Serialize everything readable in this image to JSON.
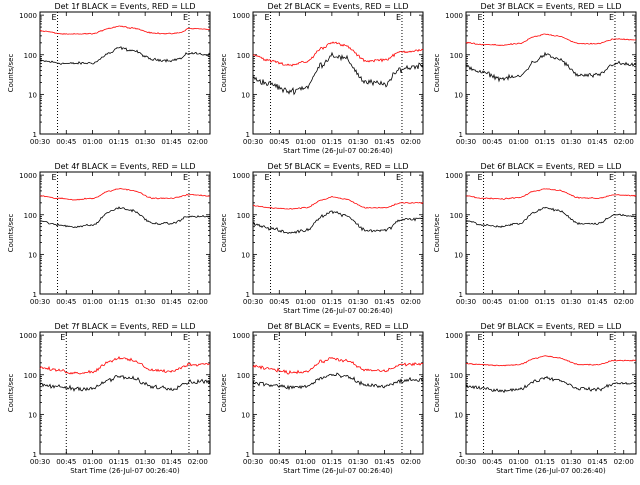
{
  "chart_data": [
    {
      "type": "line",
      "title": "Det 1f BLACK = Events, RED = LLD",
      "ylabel": "Counts/sec",
      "xlabel": "Start Time (26-Jul-07 00:26:40)",
      "show_xlabel": false,
      "x_ticks": [
        "00:30",
        "00:45",
        "01:00",
        "01:15",
        "01:30",
        "01:45",
        "02:00"
      ],
      "y_ticks": [
        "1",
        "10",
        "100",
        "1000"
      ],
      "ylim": [
        1,
        1200
      ],
      "xlim": [
        "00:30",
        "02:07"
      ],
      "scale": "log",
      "markers": [
        "00:40",
        "01:55"
      ],
      "marker_labels": [
        "E",
        "E"
      ],
      "series": [
        {
          "color": "#000000",
          "anchors_x": [
            "00:30",
            "00:45",
            "01:00",
            "01:10",
            "01:15",
            "01:22",
            "01:35",
            "01:45",
            "01:50",
            "01:55",
            "02:07"
          ],
          "anchors_y": [
            70,
            60,
            62,
            110,
            150,
            130,
            75,
            72,
            80,
            110,
            100
          ],
          "noise": 0.05
        },
        {
          "color": "#ff0000",
          "anchors_x": [
            "00:30",
            "00:45",
            "01:00",
            "01:10",
            "01:15",
            "01:22",
            "01:35",
            "01:45",
            "01:50",
            "01:55",
            "02:07"
          ],
          "anchors_y": [
            400,
            330,
            340,
            470,
            530,
            480,
            350,
            340,
            360,
            460,
            440
          ],
          "noise": 0.02
        }
      ]
    },
    {
      "type": "line",
      "title": "Det 2f BLACK = Events, RED = LLD",
      "ylabel": "Counts/sec",
      "xlabel": "Start Time (26-Jul-07 00:26:40)",
      "show_xlabel": true,
      "x_ticks": [
        "00:30",
        "00:45",
        "01:00",
        "01:15",
        "01:30",
        "01:45",
        "02:00"
      ],
      "y_ticks": [
        "1",
        "10",
        "100",
        "1000"
      ],
      "ylim": [
        1,
        1200
      ],
      "xlim": [
        "00:30",
        "02:07"
      ],
      "scale": "log",
      "markers": [
        "00:40",
        "01:55"
      ],
      "marker_labels": [
        "E",
        "E"
      ],
      "series": [
        {
          "color": "#000000",
          "anchors_x": [
            "00:30",
            "00:40",
            "00:50",
            "01:00",
            "01:10",
            "01:15",
            "01:22",
            "01:35",
            "01:45",
            "01:55",
            "02:07"
          ],
          "anchors_y": [
            25,
            18,
            12,
            15,
            60,
            100,
            80,
            20,
            18,
            45,
            55
          ],
          "noise": 0.12
        },
        {
          "color": "#ff0000",
          "anchors_x": [
            "00:30",
            "00:40",
            "00:50",
            "01:00",
            "01:10",
            "01:15",
            "01:22",
            "01:35",
            "01:45",
            "01:55",
            "02:07"
          ],
          "anchors_y": [
            100,
            70,
            55,
            65,
            150,
            210,
            170,
            70,
            75,
            120,
            130
          ],
          "noise": 0.05
        }
      ]
    },
    {
      "type": "line",
      "title": "Det 3f BLACK = Events, RED = LLD",
      "ylabel": "Counts/sec",
      "xlabel": "Start Time (26-Jul-07 00:26:40)",
      "show_xlabel": false,
      "x_ticks": [
        "00:30",
        "00:45",
        "01:00",
        "01:15",
        "01:30",
        "01:45",
        "02:00"
      ],
      "y_ticks": [
        "1",
        "10",
        "100",
        "1000"
      ],
      "ylim": [
        1,
        1200
      ],
      "xlim": [
        "00:30",
        "02:07"
      ],
      "scale": "log",
      "markers": [
        "00:40",
        "01:55"
      ],
      "marker_labels": [
        "E",
        "E"
      ],
      "series": [
        {
          "color": "#000000",
          "anchors_x": [
            "00:30",
            "00:40",
            "00:50",
            "01:00",
            "01:10",
            "01:15",
            "01:22",
            "01:35",
            "01:45",
            "01:55",
            "02:07"
          ],
          "anchors_y": [
            50,
            35,
            25,
            28,
            70,
            100,
            80,
            30,
            30,
            60,
            55
          ],
          "noise": 0.08
        },
        {
          "color": "#ff0000",
          "anchors_x": [
            "00:30",
            "00:40",
            "00:50",
            "01:00",
            "01:10",
            "01:15",
            "01:22",
            "01:35",
            "01:45",
            "01:55",
            "02:07"
          ],
          "anchors_y": [
            200,
            180,
            175,
            190,
            290,
            330,
            300,
            190,
            190,
            250,
            240
          ],
          "noise": 0.02
        }
      ]
    },
    {
      "type": "line",
      "title": "Det 4f BLACK = Events, RED = LLD",
      "ylabel": "Counts/sec",
      "xlabel": "Start Time (26-Jul-07 00:26:40)",
      "show_xlabel": false,
      "x_ticks": [
        "00:30",
        "00:45",
        "01:00",
        "01:15",
        "01:30",
        "01:45",
        "02:00"
      ],
      "y_ticks": [
        "1",
        "10",
        "100",
        "1000"
      ],
      "ylim": [
        1,
        1200
      ],
      "xlim": [
        "00:30",
        "02:07"
      ],
      "scale": "log",
      "markers": [
        "00:40",
        "01:55"
      ],
      "marker_labels": [
        "E",
        "E"
      ],
      "series": [
        {
          "color": "#000000",
          "anchors_x": [
            "00:30",
            "00:40",
            "00:50",
            "01:00",
            "01:10",
            "01:15",
            "01:22",
            "01:35",
            "01:45",
            "01:55",
            "02:07"
          ],
          "anchors_y": [
            70,
            55,
            50,
            55,
            120,
            150,
            130,
            60,
            60,
            90,
            90
          ],
          "noise": 0.04
        },
        {
          "color": "#ff0000",
          "anchors_x": [
            "00:30",
            "00:40",
            "00:50",
            "01:00",
            "01:10",
            "01:15",
            "01:22",
            "01:35",
            "01:45",
            "01:55",
            "02:07"
          ],
          "anchors_y": [
            300,
            260,
            240,
            260,
            400,
            460,
            420,
            260,
            260,
            320,
            300
          ],
          "noise": 0.02
        }
      ]
    },
    {
      "type": "line",
      "title": "Det 5f BLACK = Events, RED = LLD",
      "ylabel": "Counts/sec",
      "xlabel": "Start Time (26-Jul-07 00:26:40)",
      "show_xlabel": true,
      "x_ticks": [
        "00:30",
        "00:45",
        "01:00",
        "01:15",
        "01:30",
        "01:45",
        "02:00"
      ],
      "y_ticks": [
        "1",
        "10",
        "100",
        "1000"
      ],
      "ylim": [
        1,
        1200
      ],
      "xlim": [
        "00:30",
        "02:07"
      ],
      "scale": "log",
      "markers": [
        "00:40",
        "01:55"
      ],
      "marker_labels": [
        "E",
        "E"
      ],
      "series": [
        {
          "color": "#000000",
          "anchors_x": [
            "00:30",
            "00:40",
            "00:50",
            "01:00",
            "01:10",
            "01:15",
            "01:22",
            "01:35",
            "01:45",
            "01:55",
            "02:07"
          ],
          "anchors_y": [
            60,
            45,
            35,
            40,
            95,
            120,
            100,
            40,
            40,
            75,
            80
          ],
          "noise": 0.06
        },
        {
          "color": "#ff0000",
          "anchors_x": [
            "00:30",
            "00:40",
            "00:50",
            "01:00",
            "01:10",
            "01:15",
            "01:22",
            "01:35",
            "01:45",
            "01:55",
            "02:07"
          ],
          "anchors_y": [
            170,
            150,
            140,
            150,
            240,
            280,
            250,
            150,
            150,
            200,
            200
          ],
          "noise": 0.02
        }
      ]
    },
    {
      "type": "line",
      "title": "Det 6f BLACK = Events, RED = LLD",
      "ylabel": "Counts/sec",
      "xlabel": "Start Time (26-Jul-07 00:26:40)",
      "show_xlabel": false,
      "x_ticks": [
        "00:30",
        "00:45",
        "01:00",
        "01:15",
        "01:30",
        "01:45",
        "02:00"
      ],
      "y_ticks": [
        "1",
        "10",
        "100",
        "1000"
      ],
      "ylim": [
        1,
        1200
      ],
      "xlim": [
        "00:30",
        "02:07"
      ],
      "scale": "log",
      "markers": [
        "00:40",
        "01:55"
      ],
      "marker_labels": [
        "E",
        "E"
      ],
      "series": [
        {
          "color": "#000000",
          "anchors_x": [
            "00:30",
            "00:40",
            "00:50",
            "01:00",
            "01:10",
            "01:15",
            "01:22",
            "01:35",
            "01:45",
            "01:55",
            "02:07"
          ],
          "anchors_y": [
            70,
            55,
            50,
            60,
            120,
            150,
            130,
            60,
            60,
            100,
            90
          ],
          "noise": 0.04
        },
        {
          "color": "#ff0000",
          "anchors_x": [
            "00:30",
            "00:40",
            "00:50",
            "01:00",
            "01:10",
            "01:15",
            "01:22",
            "01:35",
            "01:45",
            "01:55",
            "02:07"
          ],
          "anchors_y": [
            300,
            260,
            250,
            270,
            400,
            450,
            420,
            270,
            260,
            320,
            300
          ],
          "noise": 0.02
        }
      ]
    },
    {
      "type": "line",
      "title": "Det 7f BLACK = Events, RED = LLD",
      "ylabel": "Counts/sec",
      "xlabel": "Start Time (26-Jul-07 00:26:40)",
      "show_xlabel": true,
      "x_ticks": [
        "00:30",
        "00:45",
        "01:00",
        "01:15",
        "01:30",
        "01:45",
        "02:00"
      ],
      "y_ticks": [
        "1",
        "10",
        "100",
        "1000"
      ],
      "ylim": [
        1,
        1200
      ],
      "xlim": [
        "00:30",
        "02:07"
      ],
      "scale": "log",
      "markers": [
        "00:45",
        "01:55"
      ],
      "marker_labels": [
        "E",
        "E"
      ],
      "series": [
        {
          "color": "#000000",
          "anchors_x": [
            "00:30",
            "00:40",
            "00:50",
            "01:00",
            "01:10",
            "01:15",
            "01:22",
            "01:35",
            "01:45",
            "01:55",
            "02:07"
          ],
          "anchors_y": [
            55,
            50,
            45,
            45,
            75,
            90,
            80,
            50,
            45,
            65,
            70
          ],
          "noise": 0.08
        },
        {
          "color": "#ff0000",
          "anchors_x": [
            "00:30",
            "00:40",
            "00:50",
            "01:00",
            "01:10",
            "01:15",
            "01:22",
            "01:35",
            "01:45",
            "01:55",
            "02:07"
          ],
          "anchors_y": [
            150,
            130,
            110,
            120,
            220,
            270,
            230,
            130,
            120,
            180,
            190
          ],
          "noise": 0.06
        }
      ]
    },
    {
      "type": "line",
      "title": "Det 8f BLACK = Events, RED = LLD",
      "ylabel": "Counts/sec",
      "xlabel": "Start Time (26-Jul-07 00:26:40)",
      "show_xlabel": true,
      "x_ticks": [
        "00:30",
        "00:45",
        "01:00",
        "01:15",
        "01:30",
        "01:45",
        "02:00"
      ],
      "y_ticks": [
        "1",
        "10",
        "100",
        "1000"
      ],
      "ylim": [
        1,
        1200
      ],
      "xlim": [
        "00:30",
        "02:07"
      ],
      "scale": "log",
      "markers": [
        "00:45",
        "01:55"
      ],
      "marker_labels": [
        "E",
        "E"
      ],
      "series": [
        {
          "color": "#000000",
          "anchors_x": [
            "00:30",
            "00:40",
            "00:50",
            "01:00",
            "01:10",
            "01:15",
            "01:22",
            "01:35",
            "01:45",
            "01:55",
            "02:07"
          ],
          "anchors_y": [
            65,
            55,
            48,
            50,
            85,
            100,
            90,
            55,
            50,
            70,
            75
          ],
          "noise": 0.08
        },
        {
          "color": "#ff0000",
          "anchors_x": [
            "00:30",
            "00:40",
            "00:50",
            "01:00",
            "01:10",
            "01:15",
            "01:22",
            "01:35",
            "01:45",
            "01:55",
            "02:07"
          ],
          "anchors_y": [
            160,
            140,
            115,
            120,
            220,
            260,
            230,
            130,
            125,
            180,
            190
          ],
          "noise": 0.06
        }
      ]
    },
    {
      "type": "line",
      "title": "Det 9f BLACK = Events, RED = LLD",
      "ylabel": "Counts/sec",
      "xlabel": "Start Time (26-Jul-07 00:26:40)",
      "show_xlabel": true,
      "x_ticks": [
        "00:30",
        "00:45",
        "01:00",
        "01:15",
        "01:30",
        "01:45",
        "02:00"
      ],
      "y_ticks": [
        "1",
        "10",
        "100",
        "1000"
      ],
      "ylim": [
        1,
        1200
      ],
      "xlim": [
        "00:30",
        "02:07"
      ],
      "scale": "log",
      "markers": [
        "00:40",
        "01:55"
      ],
      "marker_labels": [
        "E",
        "E"
      ],
      "series": [
        {
          "color": "#000000",
          "anchors_x": [
            "00:30",
            "00:40",
            "00:50",
            "01:00",
            "01:10",
            "01:15",
            "01:22",
            "01:35",
            "01:45",
            "01:55",
            "02:07"
          ],
          "anchors_y": [
            50,
            45,
            40,
            42,
            70,
            85,
            75,
            45,
            42,
            60,
            62
          ],
          "noise": 0.06
        },
        {
          "color": "#ff0000",
          "anchors_x": [
            "00:30",
            "00:40",
            "00:50",
            "01:00",
            "01:10",
            "01:15",
            "01:22",
            "01:35",
            "01:45",
            "01:55",
            "02:07"
          ],
          "anchors_y": [
            190,
            180,
            170,
            180,
            260,
            300,
            270,
            180,
            180,
            230,
            230
          ],
          "noise": 0.02
        }
      ]
    }
  ]
}
